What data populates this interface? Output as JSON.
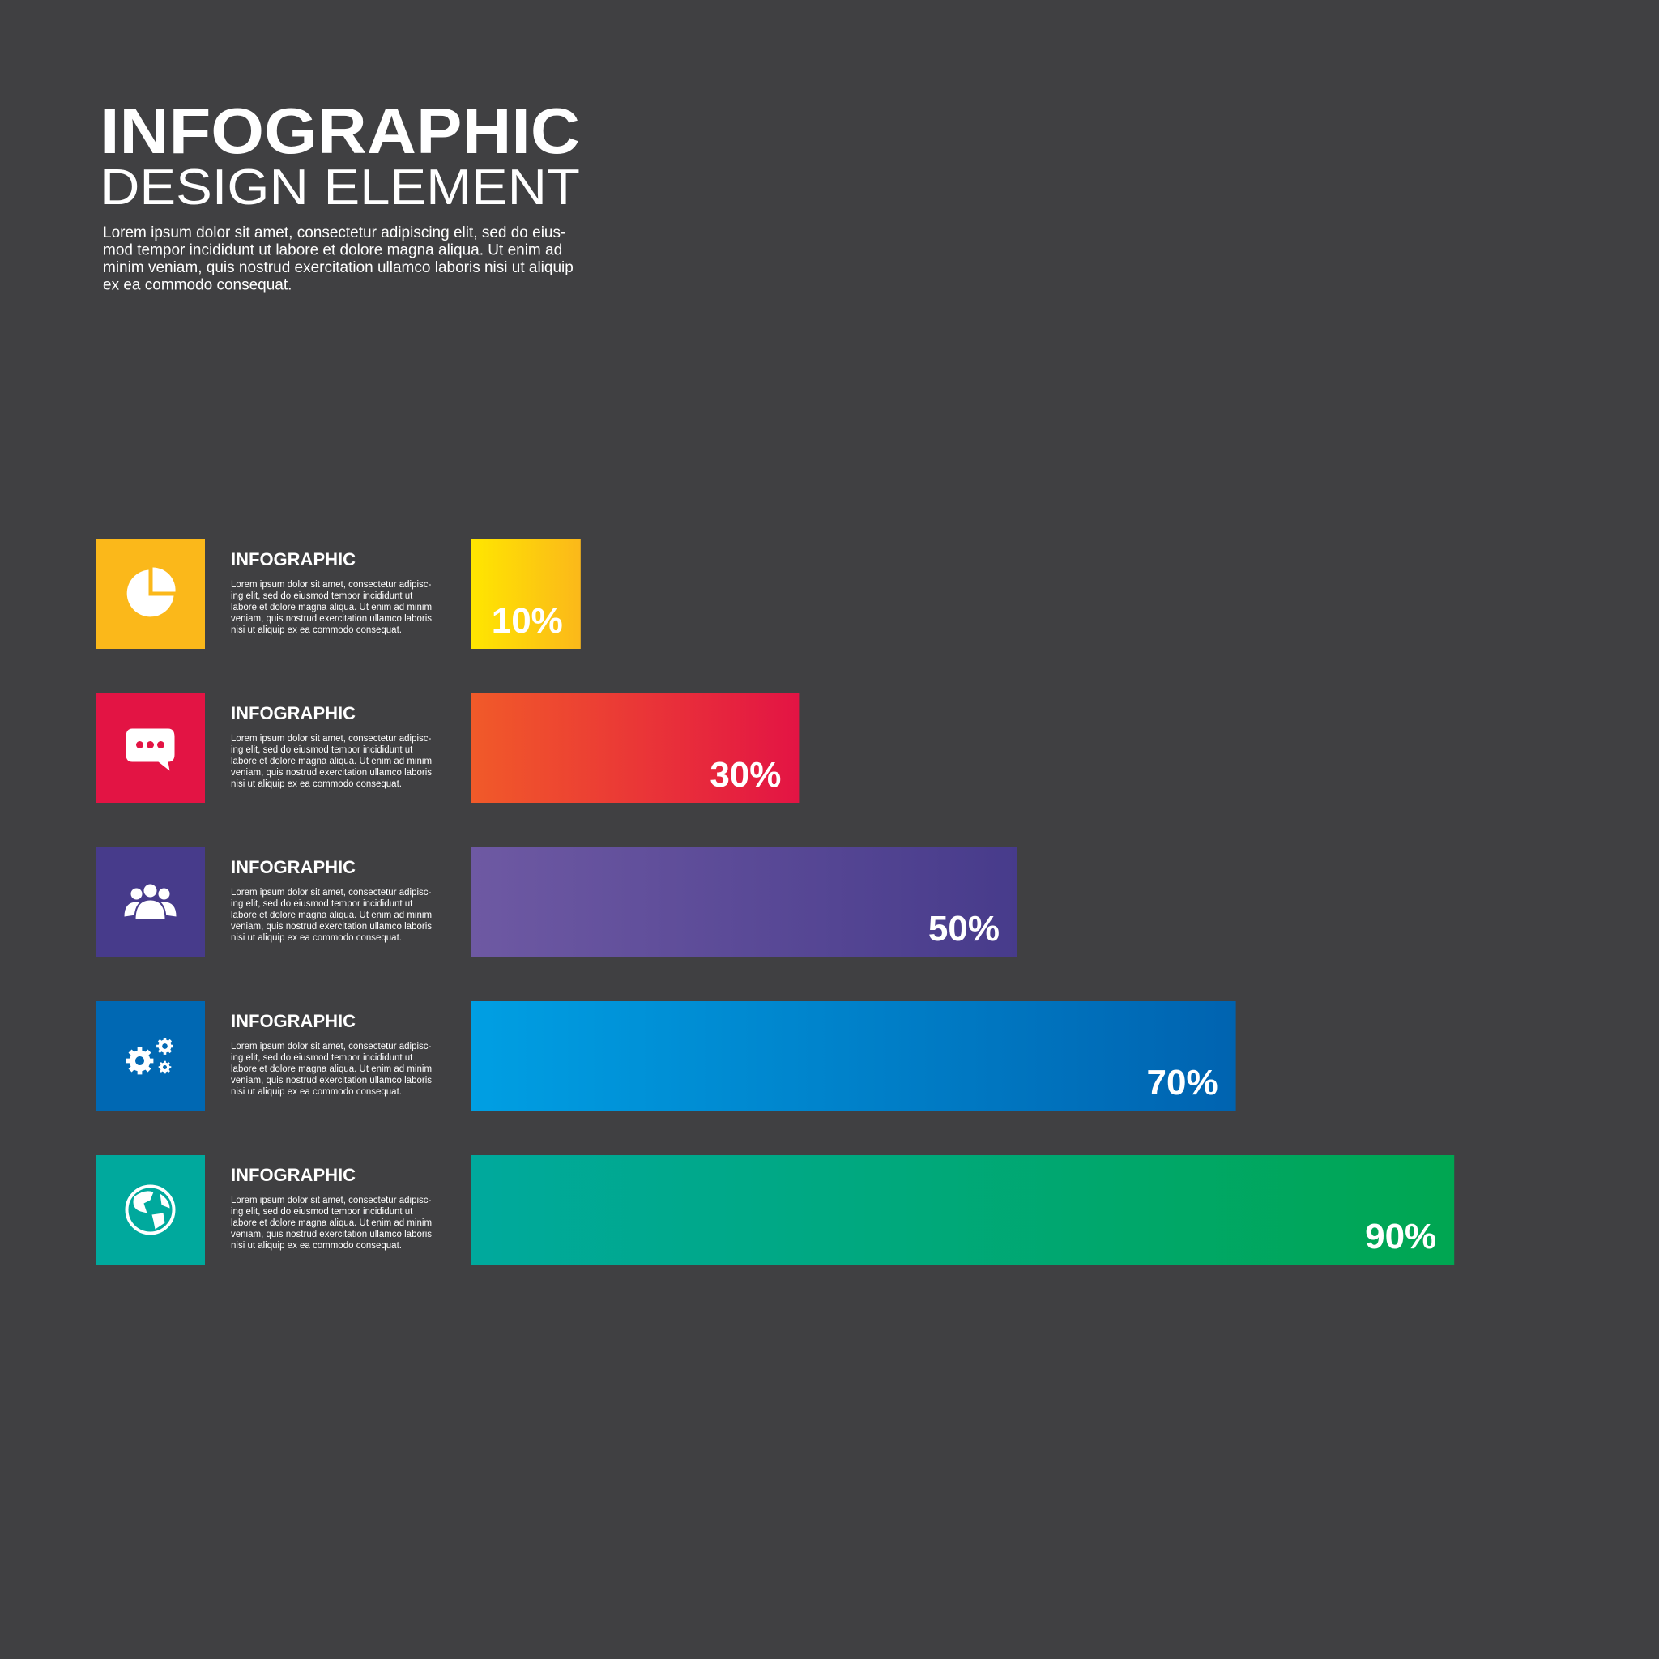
{
  "chart_data": {
    "type": "bar",
    "orientation": "horizontal",
    "title": "INFOGRAPHIC",
    "subtitle": "DESIGN ELEMENT",
    "description": [
      "Lorem ipsum dolor sit amet, consectetur adipiscing elit, sed do eius-",
      "mod tempor incididunt ut labore et dolore magna aliqua. Ut enim ad",
      "minim veniam, quis nostrud exercitation ullamco laboris nisi ut aliquip",
      "ex ea commodo consequat."
    ],
    "categories": [
      "INFOGRAPHIC",
      "INFOGRAPHIC",
      "INFOGRAPHIC",
      "INFOGRAPHIC",
      "INFOGRAPHIC"
    ],
    "category_descriptions": [
      [
        "Lorem ipsum dolor sit amet, consectetur adipisc-",
        "ing elit, sed do eiusmod tempor incididunt ut",
        "labore et dolore magna aliqua. Ut enim ad minim",
        "veniam, quis nostrud exercitation ullamco laboris",
        "nisi ut aliquip ex ea commodo consequat."
      ],
      [
        "Lorem ipsum dolor sit amet, consectetur adipisc-",
        "ing elit, sed do eiusmod tempor incididunt ut",
        "labore et dolore magna aliqua. Ut enim ad minim",
        "veniam, quis nostrud exercitation ullamco laboris",
        "nisi ut aliquip ex ea commodo consequat."
      ],
      [
        "Lorem ipsum dolor sit amet, consectetur adipisc-",
        "ing elit, sed do eiusmod tempor incididunt ut",
        "labore et dolore magna aliqua. Ut enim ad minim",
        "veniam, quis nostrud exercitation ullamco laboris",
        "nisi ut aliquip ex ea commodo consequat."
      ],
      [
        "Lorem ipsum dolor sit amet, consectetur adipisc-",
        "ing elit, sed do eiusmod tempor incididunt ut",
        "labore et dolore magna aliqua. Ut enim ad minim",
        "veniam, quis nostrud exercitation ullamco laboris",
        "nisi ut aliquip ex ea commodo consequat."
      ],
      [
        "Lorem ipsum dolor sit amet, consectetur adipisc-",
        "ing elit, sed do eiusmod tempor incididunt ut",
        "labore et dolore magna aliqua. Ut enim ad minim",
        "veniam, quis nostrud exercitation ullamco laboris",
        "nisi ut aliquip ex ea commodo consequat."
      ]
    ],
    "values": [
      10,
      30,
      50,
      70,
      90
    ],
    "value_labels": [
      "10%",
      "30%",
      "50%",
      "70%",
      "90%"
    ],
    "colors": [
      "#ffe600",
      "#f15a29",
      "#6e59a3",
      "#009fe3",
      "#00a99d"
    ],
    "gradient_end_colors": [
      "#fbb81a",
      "#e31444",
      "#473b8b",
      "#0063b0",
      "#00a651"
    ],
    "icon_box_colors": [
      "#fbb81a",
      "#e31444",
      "#473b8b",
      "#0068b3",
      "#00a99d"
    ],
    "xlim": [
      0,
      100
    ]
  }
}
